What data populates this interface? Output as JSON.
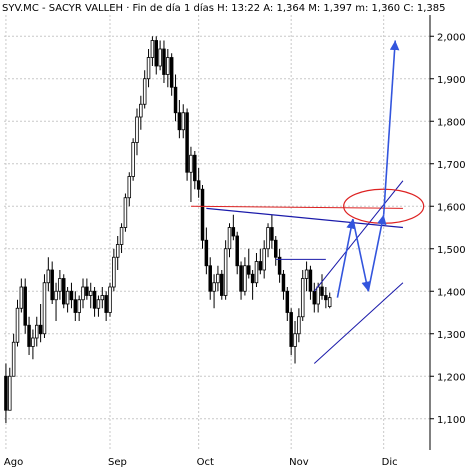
{
  "header": {
    "text": "SYV.MC - SACYR VALLEH · Fin de día 1 días  H: 13:22  A: 1,364  M: 1,397  m: 1,360  C: 1,385"
  },
  "chart_data": {
    "type": "candlestick",
    "title": "SYV.MC - SACYR VALLEH",
    "ylim": [
      1.05,
      2.05
    ],
    "y_ticks": [
      {
        "value": 1.1,
        "label": "1,100"
      },
      {
        "value": 1.2,
        "label": "1,200"
      },
      {
        "value": 1.3,
        "label": "1,300"
      },
      {
        "value": 1.4,
        "label": "1,400"
      },
      {
        "value": 1.5,
        "label": "1,500"
      },
      {
        "value": 1.6,
        "label": "1,600"
      },
      {
        "value": 1.7,
        "label": "1,700"
      },
      {
        "value": 1.8,
        "label": "1,800"
      },
      {
        "value": 1.9,
        "label": "1,900"
      },
      {
        "value": 2.0,
        "label": "2,000"
      }
    ],
    "x_ticks": [
      {
        "index": 0,
        "label": "Ago"
      },
      {
        "index": 27,
        "label": "Sep"
      },
      {
        "index": 50,
        "label": "Oct"
      },
      {
        "index": 74,
        "label": "Nov"
      },
      {
        "index": 98,
        "label": "Dic"
      }
    ],
    "grid": true,
    "colors": {
      "up": "#ffffff",
      "down": "#000000",
      "grid": "#c8c8c8",
      "trend_blue": "#1a1aaa",
      "forecast_blue": "#3355dd",
      "red": "#dd2222"
    },
    "candles": [
      [
        1.2,
        1.23,
        1.09,
        1.12
      ],
      [
        1.12,
        1.22,
        1.12,
        1.2
      ],
      [
        1.2,
        1.3,
        1.2,
        1.28
      ],
      [
        1.28,
        1.38,
        1.27,
        1.36
      ],
      [
        1.36,
        1.43,
        1.35,
        1.41
      ],
      [
        1.41,
        1.43,
        1.3,
        1.32
      ],
      [
        1.32,
        1.34,
        1.25,
        1.27
      ],
      [
        1.27,
        1.31,
        1.24,
        1.29
      ],
      [
        1.29,
        1.34,
        1.27,
        1.32
      ],
      [
        1.32,
        1.37,
        1.28,
        1.3
      ],
      [
        1.3,
        1.44,
        1.29,
        1.42
      ],
      [
        1.42,
        1.48,
        1.4,
        1.45
      ],
      [
        1.45,
        1.47,
        1.37,
        1.38
      ],
      [
        1.38,
        1.42,
        1.33,
        1.4
      ],
      [
        1.4,
        1.45,
        1.38,
        1.43
      ],
      [
        1.43,
        1.44,
        1.36,
        1.37
      ],
      [
        1.37,
        1.41,
        1.35,
        1.4
      ],
      [
        1.4,
        1.42,
        1.36,
        1.38
      ],
      [
        1.38,
        1.4,
        1.33,
        1.35
      ],
      [
        1.35,
        1.39,
        1.33,
        1.38
      ],
      [
        1.38,
        1.43,
        1.36,
        1.41
      ],
      [
        1.41,
        1.43,
        1.38,
        1.39
      ],
      [
        1.39,
        1.42,
        1.36,
        1.4
      ],
      [
        1.4,
        1.41,
        1.34,
        1.36
      ],
      [
        1.36,
        1.39,
        1.34,
        1.38
      ],
      [
        1.38,
        1.41,
        1.36,
        1.39
      ],
      [
        1.39,
        1.4,
        1.33,
        1.35
      ],
      [
        1.35,
        1.42,
        1.34,
        1.41
      ],
      [
        1.41,
        1.5,
        1.4,
        1.48
      ],
      [
        1.48,
        1.53,
        1.45,
        1.51
      ],
      [
        1.51,
        1.56,
        1.49,
        1.55
      ],
      [
        1.55,
        1.63,
        1.54,
        1.62
      ],
      [
        1.62,
        1.68,
        1.6,
        1.67
      ],
      [
        1.67,
        1.76,
        1.66,
        1.75
      ],
      [
        1.75,
        1.83,
        1.72,
        1.81
      ],
      [
        1.81,
        1.86,
        1.78,
        1.84
      ],
      [
        1.84,
        1.92,
        1.83,
        1.9
      ],
      [
        1.9,
        1.97,
        1.88,
        1.95
      ],
      [
        1.95,
        2.0,
        1.93,
        1.99
      ],
      [
        1.99,
        2.0,
        1.91,
        1.93
      ],
      [
        1.93,
        1.99,
        1.92,
        1.97
      ],
      [
        1.97,
        1.99,
        1.89,
        1.91
      ],
      [
        1.91,
        1.97,
        1.88,
        1.95
      ],
      [
        1.95,
        1.96,
        1.86,
        1.88
      ],
      [
        1.88,
        1.91,
        1.8,
        1.82
      ],
      [
        1.82,
        1.85,
        1.76,
        1.78
      ],
      [
        1.78,
        1.84,
        1.76,
        1.82
      ],
      [
        1.82,
        1.83,
        1.66,
        1.68
      ],
      [
        1.68,
        1.74,
        1.61,
        1.72
      ],
      [
        1.72,
        1.73,
        1.64,
        1.66
      ],
      [
        1.66,
        1.69,
        1.62,
        1.64
      ],
      [
        1.64,
        1.65,
        1.5,
        1.52
      ],
      [
        1.52,
        1.55,
        1.44,
        1.46
      ],
      [
        1.46,
        1.48,
        1.38,
        1.4
      ],
      [
        1.4,
        1.44,
        1.36,
        1.42
      ],
      [
        1.42,
        1.46,
        1.4,
        1.44
      ],
      [
        1.44,
        1.45,
        1.38,
        1.39
      ],
      [
        1.39,
        1.52,
        1.38,
        1.5
      ],
      [
        1.5,
        1.56,
        1.48,
        1.55
      ],
      [
        1.55,
        1.58,
        1.52,
        1.53
      ],
      [
        1.53,
        1.54,
        1.44,
        1.46
      ],
      [
        1.46,
        1.47,
        1.38,
        1.4
      ],
      [
        1.4,
        1.48,
        1.39,
        1.46
      ],
      [
        1.46,
        1.5,
        1.43,
        1.44
      ],
      [
        1.44,
        1.45,
        1.38,
        1.42
      ],
      [
        1.42,
        1.49,
        1.41,
        1.47
      ],
      [
        1.47,
        1.5,
        1.44,
        1.45
      ],
      [
        1.45,
        1.52,
        1.43,
        1.5
      ],
      [
        1.5,
        1.56,
        1.48,
        1.55
      ],
      [
        1.55,
        1.58,
        1.5,
        1.52
      ],
      [
        1.52,
        1.53,
        1.46,
        1.48
      ],
      [
        1.48,
        1.5,
        1.42,
        1.44
      ],
      [
        1.44,
        1.45,
        1.38,
        1.4
      ],
      [
        1.4,
        1.41,
        1.33,
        1.35
      ],
      [
        1.35,
        1.36,
        1.25,
        1.27
      ],
      [
        1.27,
        1.33,
        1.23,
        1.3
      ],
      [
        1.3,
        1.36,
        1.28,
        1.34
      ],
      [
        1.34,
        1.45,
        1.33,
        1.43
      ],
      [
        1.43,
        1.47,
        1.4,
        1.45
      ],
      [
        1.45,
        1.46,
        1.38,
        1.4
      ],
      [
        1.4,
        1.42,
        1.35,
        1.37
      ],
      [
        1.37,
        1.42,
        1.35,
        1.41
      ],
      [
        1.41,
        1.44,
        1.38,
        1.39
      ],
      [
        1.39,
        1.41,
        1.36,
        1.38
      ],
      [
        1.364,
        1.397,
        1.36,
        1.385
      ]
    ],
    "annotations": {
      "resistance_red": {
        "x1": 48,
        "y1": 1.6,
        "x2": 103,
        "y2": 1.595
      },
      "trendline_blue": {
        "x1": 52,
        "y1": 1.595,
        "x2": 103,
        "y2": 1.55
      },
      "horizontal_short": {
        "x1": 70,
        "y1": 1.475,
        "x2": 83,
        "y2": 1.475
      },
      "channel_upper": {
        "x1": 80,
        "y1": 1.4,
        "x2": 103,
        "y2": 1.66
      },
      "channel_lower": {
        "x1": 80,
        "y1": 1.23,
        "x2": 103,
        "y2": 1.42
      },
      "forecast_path": [
        {
          "x": 86,
          "y": 1.385
        },
        {
          "x": 90,
          "y": 1.57
        },
        {
          "x": 94,
          "y": 1.4
        },
        {
          "x": 98,
          "y": 1.58
        },
        {
          "x": 101,
          "y": 1.99
        }
      ],
      "ellipse_center": {
        "x": 98,
        "y": 1.6
      }
    }
  }
}
